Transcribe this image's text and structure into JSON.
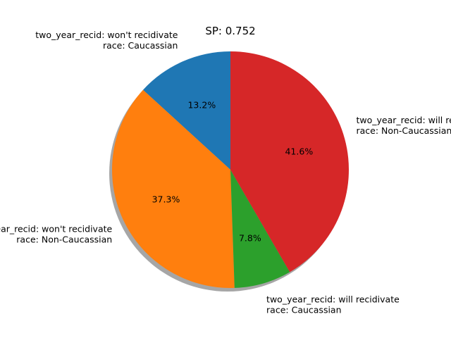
{
  "chart_data": {
    "type": "pie",
    "title": "SP: 0.752",
    "slices": [
      {
        "label_lines": [
          "two_year_recid: won't recidivate",
          "race: Caucassian"
        ],
        "value": 13.2,
        "pct_label": "13.2%",
        "color": "#1f77b4"
      },
      {
        "label_lines": [
          "two_year_recid: won't recidivate",
          "race: Non-Caucassian"
        ],
        "value": 37.3,
        "pct_label": "37.3%",
        "color": "#ff7f0e"
      },
      {
        "label_lines": [
          "two_year_recid: will recidivate",
          "race: Caucassian"
        ],
        "value": 7.8,
        "pct_label": "7.8%",
        "color": "#2ca02c"
      },
      {
        "label_lines": [
          "two_year_recid: will recidivate",
          "race: Non-Caucassian"
        ],
        "value": 41.6,
        "pct_label": "41.6%",
        "color": "#d62728"
      }
    ],
    "start_angle": 90,
    "direction": "counterclockwise",
    "shadow": true,
    "legend": "none"
  }
}
